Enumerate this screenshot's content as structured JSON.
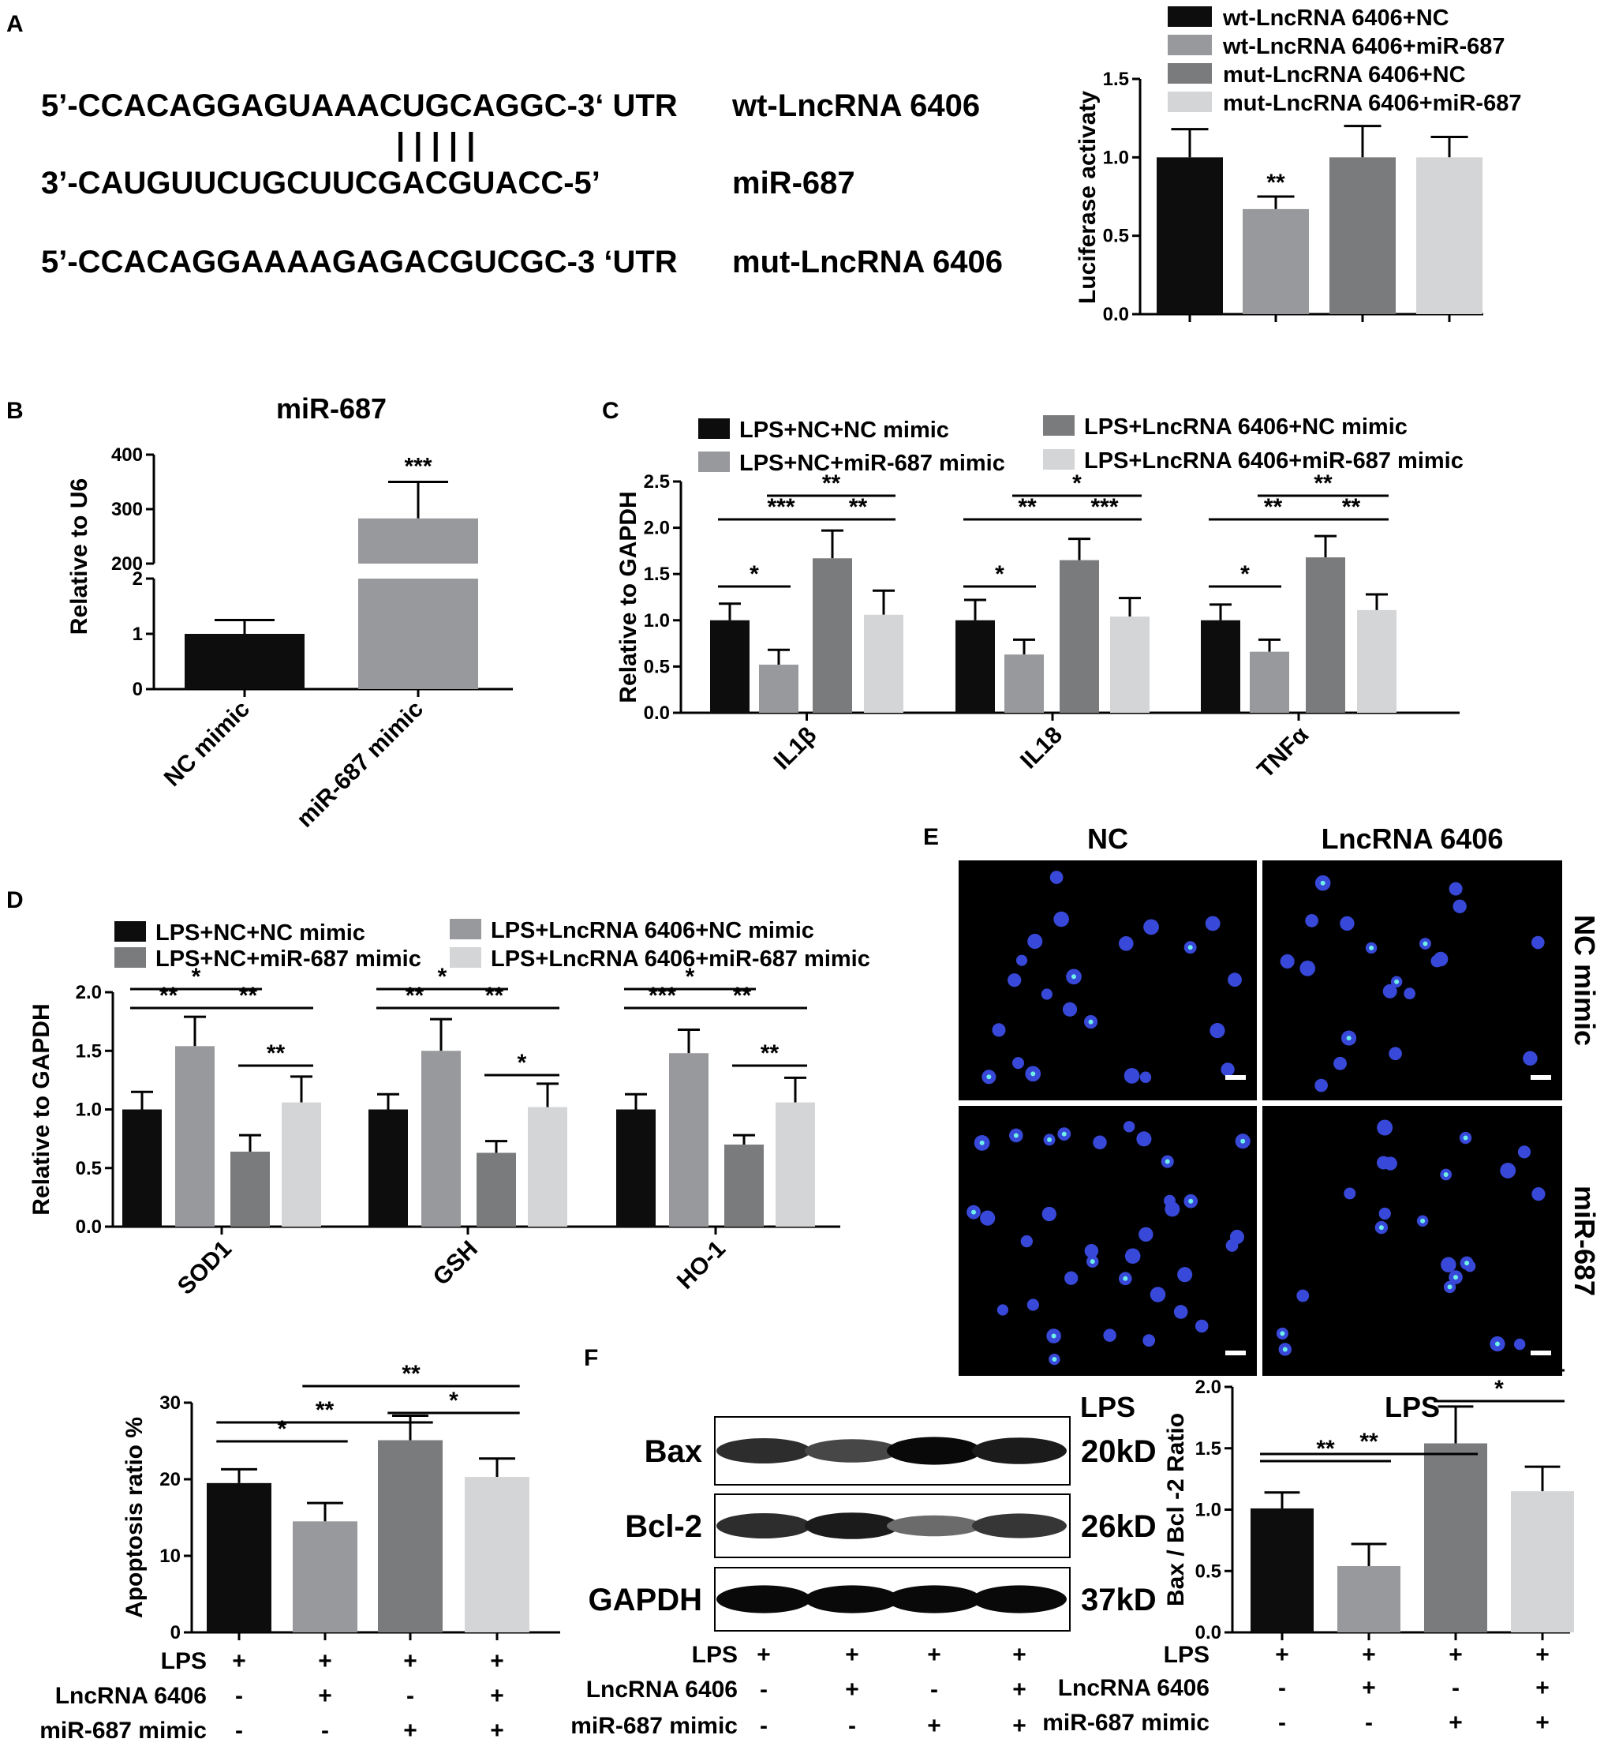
{
  "panels": {
    "A": "A",
    "B": "B",
    "C": "C",
    "D": "D",
    "E": "E",
    "F": "F"
  },
  "panel_a": {
    "seq_wt": "5’-CCACAGGAGUAAACUGCAGGC-3‘ UTR",
    "seq_pairs": "| | | | |",
    "seq_mir": "3’-CAUGUUCUGCUUCGACGUACC-5’",
    "seq_mut": "5’-CCACAGGAAAAGAGACGUCGC-3 ‘UTR",
    "name_wt": "wt-LncRNA 6406",
    "name_mir": "miR-687",
    "name_mut": "mut-LncRNA 6406"
  },
  "panel_e": {
    "col1": "NC",
    "col2": "LncRNA 6406",
    "row1": "NC mimic",
    "row2": "miR-687",
    "bottom1": "LPS",
    "bottom2": "LPS"
  },
  "western": {
    "bands": [
      "Bax",
      "Bcl-2",
      "GAPDH"
    ],
    "sizes": [
      "20kD",
      "26kD",
      "37kD"
    ],
    "intensity": [
      [
        0.75,
        0.6,
        0.95,
        0.85
      ],
      [
        0.75,
        0.85,
        0.4,
        0.7
      ],
      [
        0.95,
        0.95,
        0.95,
        0.95
      ]
    ]
  },
  "conditions": {
    "labels": [
      "LPS",
      "LncRNA 6406",
      "miR-687 mimic"
    ],
    "rows": [
      [
        "+",
        "+",
        "+",
        "+"
      ],
      [
        "-",
        "+",
        "-",
        "+"
      ],
      [
        "-",
        "-",
        "+",
        "+"
      ]
    ]
  },
  "colors": {
    "black": "#0d0d0d",
    "mid": "#98999c",
    "dark": "#7a7b7d",
    "light": "#d4d5d6"
  },
  "chart_data": [
    {
      "id": "A-luciferase",
      "type": "bar",
      "ylabel": "Luciferase activaty",
      "ylim": [
        0,
        1.5
      ],
      "yticks": [
        "0.0",
        "0.5",
        "1.0",
        "1.5"
      ],
      "legend": [
        "wt-LncRNA 6406+NC",
        "wt-LncRNA 6406+miR-687",
        "mut-LncRNA 6406+NC",
        "mut-LncRNA 6406+miR-687"
      ],
      "values": [
        1.0,
        0.67,
        1.0,
        1.0
      ],
      "errors": [
        0.18,
        0.08,
        0.2,
        0.13
      ],
      "annotations": [
        {
          "bar": 1,
          "text": "**"
        }
      ]
    },
    {
      "id": "B-mir687",
      "type": "bar",
      "title": "miR-687",
      "ylabel": "Relative to U6",
      "categories": [
        "NC mimic",
        "miR-687 mimic"
      ],
      "values": [
        1.0,
        283
      ],
      "errors": [
        0.25,
        67
      ],
      "yticks_lower": [
        "0",
        "1",
        "2"
      ],
      "yticks_upper": [
        "200",
        "300",
        "400"
      ],
      "broken_axis": true,
      "annotations": [
        {
          "bar": 1,
          "text": "***"
        }
      ]
    },
    {
      "id": "C-cytokines",
      "type": "bar",
      "ylabel": "Relative to GAPDH",
      "ylim": [
        0,
        2.5
      ],
      "yticks": [
        "0.0",
        "0.5",
        "1.0",
        "1.5",
        "2.0",
        "2.5"
      ],
      "categories": [
        "IL1β",
        "IL18",
        "TNFα"
      ],
      "series": [
        {
          "name": "LPS+NC+NC mimic",
          "values": [
            1.0,
            1.0,
            1.0
          ],
          "errors": [
            0.18,
            0.22,
            0.17
          ]
        },
        {
          "name": "LPS+NC+miR-687 mimic",
          "values": [
            0.52,
            0.63,
            0.66
          ],
          "errors": [
            0.16,
            0.16,
            0.13
          ]
        },
        {
          "name": "LPS+LncRNA 6406+NC mimic",
          "values": [
            1.67,
            1.65,
            1.68
          ],
          "errors": [
            0.3,
            0.23,
            0.23
          ]
        },
        {
          "name": "LPS+LncRNA 6406+miR-687 mimic",
          "values": [
            1.06,
            1.04,
            1.11
          ],
          "errors": [
            0.26,
            0.2,
            0.17
          ]
        }
      ],
      "annotations": [
        {
          "g": 0,
          "a": 0,
          "b": 1,
          "text": "*"
        },
        {
          "g": 0,
          "a": 0,
          "b": 2,
          "text": "***"
        },
        {
          "g": 0,
          "a": 2,
          "b": 3,
          "text": "**"
        },
        {
          "g": 0,
          "a": 1,
          "b": 3,
          "text": "**"
        },
        {
          "g": 1,
          "a": 0,
          "b": 1,
          "text": "*"
        },
        {
          "g": 1,
          "a": 0,
          "b": 2,
          "text": "**"
        },
        {
          "g": 1,
          "a": 2,
          "b": 3,
          "text": "***"
        },
        {
          "g": 1,
          "a": 1,
          "b": 3,
          "text": "*"
        },
        {
          "g": 2,
          "a": 0,
          "b": 1,
          "text": "*"
        },
        {
          "g": 2,
          "a": 0,
          "b": 2,
          "text": "**"
        },
        {
          "g": 2,
          "a": 2,
          "b": 3,
          "text": "**"
        },
        {
          "g": 2,
          "a": 1,
          "b": 3,
          "text": "**"
        }
      ]
    },
    {
      "id": "D-antioxidants",
      "type": "bar",
      "ylabel": "Relative to GAPDH",
      "ylim": [
        0,
        2.0
      ],
      "yticks": [
        "0.0",
        "0.5",
        "1.0",
        "1.5",
        "2.0"
      ],
      "categories": [
        "SOD1",
        "GSH",
        "HO-1"
      ],
      "series": [
        {
          "name": "LPS+NC+NC mimic",
          "values": [
            1.0,
            1.0,
            1.0
          ],
          "errors": [
            0.15,
            0.13,
            0.13
          ]
        },
        {
          "name": "LPS+LncRNA 6406+NC mimic",
          "values": [
            1.54,
            1.5,
            1.48
          ],
          "errors": [
            0.25,
            0.27,
            0.2
          ]
        },
        {
          "name": "LPS+NC+miR-687 mimic",
          "values": [
            0.64,
            0.63,
            0.7
          ],
          "errors": [
            0.14,
            0.1,
            0.08
          ]
        },
        {
          "name": "LPS+LncRNA 6406+miR-687 mimic",
          "values": [
            1.06,
            1.02,
            1.06
          ],
          "errors": [
            0.22,
            0.2,
            0.21
          ]
        }
      ],
      "annotations": [
        {
          "g": 0,
          "a": 0,
          "b": 1,
          "text": "**"
        },
        {
          "g": 0,
          "a": 0,
          "b": 2,
          "text": "*"
        },
        {
          "g": 0,
          "a": 1,
          "b": 3,
          "text": "**"
        },
        {
          "g": 0,
          "a": 2,
          "b": 3,
          "text": "**"
        },
        {
          "g": 1,
          "a": 0,
          "b": 1,
          "text": "**"
        },
        {
          "g": 1,
          "a": 0,
          "b": 2,
          "text": "*"
        },
        {
          "g": 1,
          "a": 1,
          "b": 3,
          "text": "**"
        },
        {
          "g": 1,
          "a": 2,
          "b": 3,
          "text": "*"
        },
        {
          "g": 2,
          "a": 0,
          "b": 1,
          "text": "***"
        },
        {
          "g": 2,
          "a": 0,
          "b": 2,
          "text": "*"
        },
        {
          "g": 2,
          "a": 1,
          "b": 3,
          "text": "**"
        },
        {
          "g": 2,
          "a": 2,
          "b": 3,
          "text": "**"
        }
      ]
    },
    {
      "id": "E-apoptosis",
      "type": "bar",
      "ylabel": "Apoptosis ratio %",
      "ylim": [
        0,
        30
      ],
      "yticks": [
        "0",
        "10",
        "20",
        "30"
      ],
      "values": [
        19.5,
        14.5,
        25.1,
        20.3
      ],
      "errors": [
        1.8,
        2.4,
        3.2,
        2.4
      ],
      "annotations": [
        {
          "a": 0,
          "b": 1,
          "text": "*"
        },
        {
          "a": 0,
          "b": 2,
          "text": "**"
        },
        {
          "a": 1,
          "b": 3,
          "text": "**"
        },
        {
          "a": 2,
          "b": 3,
          "text": "*"
        }
      ]
    },
    {
      "id": "F-bax-bcl2",
      "type": "bar",
      "ylabel": "Bax / Bcl -2  Ratio",
      "ylim": [
        0,
        2.0
      ],
      "yticks": [
        "0.0",
        "0.5",
        "1.0",
        "1.5",
        "2.0"
      ],
      "values": [
        1.01,
        0.54,
        1.54,
        1.15
      ],
      "errors": [
        0.13,
        0.18,
        0.3,
        0.2
      ],
      "annotations": [
        {
          "a": 0,
          "b": 1,
          "text": "**"
        },
        {
          "a": 0,
          "b": 2,
          "text": "**"
        },
        {
          "a": 1,
          "b": 3,
          "text": "***"
        },
        {
          "a": 2,
          "b": 3,
          "text": "*"
        }
      ]
    }
  ]
}
